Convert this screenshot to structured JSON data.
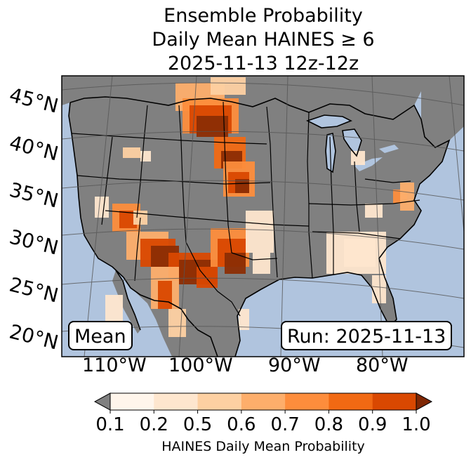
{
  "title": {
    "line1": "Ensemble Probability",
    "line2": "Daily Mean HAINES ≥ 6",
    "line3": "2025-11-13 12z-12z"
  },
  "map": {
    "latitude_labels": [
      "45°N",
      "40°N",
      "35°N",
      "30°N",
      "25°N",
      "20°N"
    ],
    "longitude_labels": [
      "110°W",
      "100°W",
      "90°W",
      "80°W"
    ],
    "mean_label": "Mean",
    "run_label": "Run: 2025-11-13",
    "colors": {
      "ocean": "#b0c4de",
      "land": "#808080",
      "lakes": "#b0c4de"
    }
  },
  "colorbar": {
    "title": "HAINES Daily Mean Probability",
    "ticks": [
      "0.1",
      "0.2",
      "0.5",
      "0.6",
      "0.7",
      "0.8",
      "0.9",
      "1.0"
    ],
    "colors": [
      "#fff5eb",
      "#fee6ce",
      "#fdd0a2",
      "#fdae6b",
      "#fd8d3c",
      "#f16913",
      "#d94801",
      "#8c2d04"
    ],
    "under_color": "#808080",
    "over_color": "#7f2704"
  }
}
